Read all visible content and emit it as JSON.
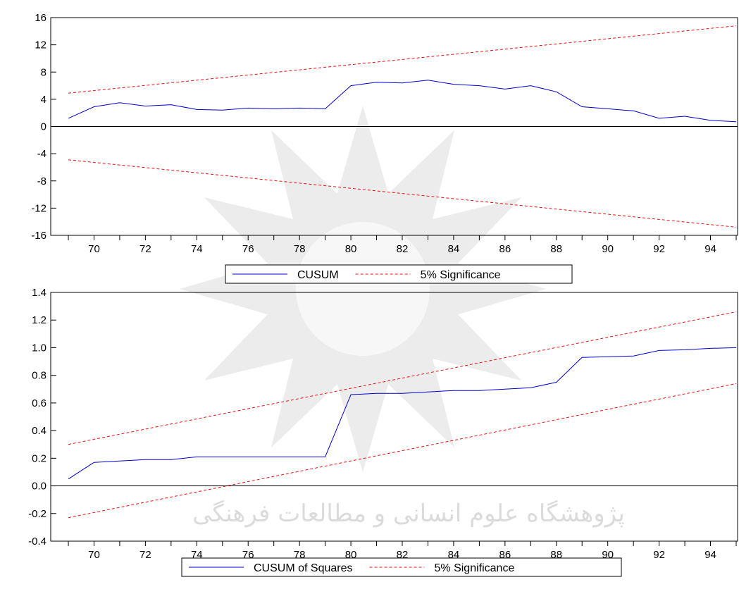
{
  "watermark": {
    "line1": "پژوهشگاه علوم انسانی و مطالعات فرهنگی",
    "color": "#b9b9b9"
  },
  "colors": {
    "cusum": "#0000cc",
    "significance": "#ee1111",
    "axis": "#000000"
  },
  "chart_data": [
    {
      "type": "line",
      "title": "",
      "x_ticks": [
        "70",
        "72",
        "74",
        "76",
        "78",
        "80",
        "82",
        "84",
        "86",
        "88",
        "90",
        "92",
        "94"
      ],
      "xlim": [
        1969,
        1995
      ],
      "ylim": [
        -16,
        16
      ],
      "y_ticks": [
        "16",
        "12",
        "8",
        "4",
        "0",
        "-4",
        "-8",
        "-12",
        "-16"
      ],
      "y_tick_values": [
        16,
        12,
        8,
        4,
        0,
        -4,
        -8,
        -12,
        -16
      ],
      "grid": false,
      "legend_position": "bottom-center",
      "x": [
        1969,
        1970,
        1971,
        1972,
        1973,
        1974,
        1975,
        1976,
        1977,
        1978,
        1979,
        1980,
        1981,
        1982,
        1983,
        1984,
        1985,
        1986,
        1987,
        1988,
        1989,
        1990,
        1991,
        1992,
        1993,
        1994,
        1995
      ],
      "series": [
        {
          "name": "CUSUM",
          "style": "solid",
          "color": "#0000cc",
          "values": [
            1.2,
            2.9,
            3.5,
            3.0,
            3.2,
            2.5,
            2.4,
            2.7,
            2.6,
            2.7,
            2.6,
            6.0,
            6.5,
            6.4,
            6.8,
            6.2,
            6.0,
            5.5,
            6.0,
            5.1,
            2.9,
            2.6,
            2.3,
            1.2,
            1.5,
            0.9,
            0.7
          ]
        },
        {
          "name": "5% Significance",
          "style": "dashed",
          "color": "#ee1111",
          "endpoints": {
            "x": [
              1969,
              1995
            ],
            "values": [
              4.9,
              14.8
            ]
          }
        },
        {
          "name": "",
          "style": "dashed",
          "color": "#ee1111",
          "endpoints": {
            "x": [
              1969,
              1995
            ],
            "values": [
              -4.9,
              -14.8
            ]
          }
        }
      ]
    },
    {
      "type": "line",
      "title": "",
      "x_ticks": [
        "70",
        "72",
        "74",
        "76",
        "78",
        "80",
        "82",
        "84",
        "86",
        "88",
        "90",
        "92",
        "94"
      ],
      "xlim": [
        1969,
        1995
      ],
      "ylim": [
        -0.4,
        1.4
      ],
      "y_ticks": [
        "1.4",
        "1.2",
        "1.0",
        "0.8",
        "0.6",
        "0.4",
        "0.2",
        "0.0",
        "-0.2",
        "-0.4"
      ],
      "y_tick_values": [
        1.4,
        1.2,
        1.0,
        0.8,
        0.6,
        0.4,
        0.2,
        0.0,
        -0.2,
        -0.4
      ],
      "grid": false,
      "legend_position": "bottom-center",
      "x": [
        1969,
        1970,
        1971,
        1972,
        1973,
        1974,
        1975,
        1976,
        1977,
        1978,
        1979,
        1980,
        1981,
        1982,
        1983,
        1984,
        1985,
        1986,
        1987,
        1988,
        1989,
        1990,
        1991,
        1992,
        1993,
        1994,
        1995
      ],
      "series": [
        {
          "name": "CUSUM of Squares",
          "style": "solid",
          "color": "#0000cc",
          "values": [
            0.05,
            0.17,
            0.18,
            0.19,
            0.19,
            0.21,
            0.21,
            0.21,
            0.21,
            0.21,
            0.21,
            0.66,
            0.67,
            0.67,
            0.68,
            0.69,
            0.69,
            0.7,
            0.71,
            0.75,
            0.93,
            0.935,
            0.94,
            0.98,
            0.985,
            0.995,
            1.0
          ]
        },
        {
          "name": "5% Significance",
          "style": "dashed",
          "color": "#ee1111",
          "endpoints": {
            "x": [
              1969,
              1995
            ],
            "values": [
              0.3,
              1.26
            ]
          }
        },
        {
          "name": "",
          "style": "dashed",
          "color": "#ee1111",
          "endpoints": {
            "x": [
              1969,
              1995
            ],
            "values": [
              -0.23,
              0.74
            ]
          }
        }
      ]
    }
  ]
}
